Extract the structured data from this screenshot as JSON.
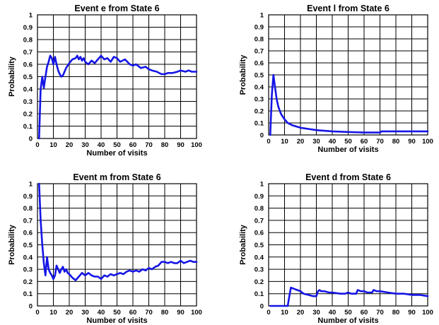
{
  "chart_data": [
    {
      "type": "line",
      "title": "Event e from State 6",
      "xlabel": "Number of visits",
      "ylabel": "Probability",
      "xlim": [
        0,
        100
      ],
      "ylim": [
        0,
        1
      ],
      "x_ticks": [
        "0",
        "10",
        "20",
        "30",
        "40",
        "50",
        "60",
        "70",
        "80",
        "90",
        "100"
      ],
      "y_ticks": [
        "0",
        "0.1",
        "0.2",
        "0.3",
        "0.4",
        "0.5",
        "0.6",
        "0.7",
        "0.8",
        "0.9",
        "1"
      ],
      "grid": true,
      "color": "#1515e6",
      "series": [
        {
          "x": [
            1,
            2,
            3,
            4,
            5,
            6,
            7,
            8,
            9,
            10,
            11,
            12,
            13,
            14,
            15,
            16,
            17,
            18,
            20,
            22,
            24,
            25,
            26,
            27,
            28,
            29,
            30,
            32,
            34,
            36,
            38,
            40,
            42,
            44,
            46,
            48,
            50,
            52,
            55,
            58,
            60,
            62,
            65,
            68,
            70,
            72,
            75,
            78,
            80,
            82,
            85,
            88,
            90,
            93,
            95,
            97,
            100
          ],
          "y": [
            0.0,
            0.4,
            0.5,
            0.41,
            0.5,
            0.58,
            0.62,
            0.67,
            0.65,
            0.6,
            0.66,
            0.6,
            0.55,
            0.52,
            0.5,
            0.51,
            0.54,
            0.57,
            0.61,
            0.64,
            0.65,
            0.67,
            0.64,
            0.66,
            0.63,
            0.65,
            0.62,
            0.6,
            0.63,
            0.61,
            0.64,
            0.67,
            0.64,
            0.65,
            0.62,
            0.66,
            0.65,
            0.62,
            0.64,
            0.6,
            0.59,
            0.6,
            0.57,
            0.58,
            0.56,
            0.55,
            0.54,
            0.52,
            0.52,
            0.53,
            0.53,
            0.54,
            0.55,
            0.54,
            0.55,
            0.54,
            0.54
          ]
        }
      ]
    },
    {
      "type": "line",
      "title": "Event l from State 6",
      "xlabel": "Number of visits",
      "ylabel": "Probability",
      "xlim": [
        0,
        100
      ],
      "ylim": [
        0,
        1
      ],
      "x_ticks": [
        "0",
        "10",
        "20",
        "30",
        "40",
        "50",
        "60",
        "70",
        "80",
        "90",
        "100"
      ],
      "y_ticks": [
        "0",
        "0.1",
        "0.2",
        "0.3",
        "0.4",
        "0.5",
        "0.6",
        "0.7",
        "0.8",
        "0.9",
        "1"
      ],
      "grid": true,
      "color": "#1515e6",
      "series": [
        {
          "x": [
            1,
            2,
            3,
            4,
            5,
            6,
            7,
            8,
            10,
            12,
            15,
            20,
            25,
            30,
            40,
            50,
            60,
            70,
            71,
            72,
            80,
            90,
            100
          ],
          "y": [
            0.0,
            0.33,
            0.5,
            0.4,
            0.3,
            0.24,
            0.2,
            0.17,
            0.13,
            0.1,
            0.08,
            0.06,
            0.05,
            0.04,
            0.03,
            0.025,
            0.02,
            0.02,
            0.03,
            0.03,
            0.03,
            0.03,
            0.03
          ]
        }
      ]
    },
    {
      "type": "line",
      "title": "Event m from State 6",
      "xlabel": "Number of visits",
      "ylabel": "Probability",
      "xlim": [
        0,
        100
      ],
      "ylim": [
        0,
        1
      ],
      "x_ticks": [
        "0",
        "10",
        "20",
        "30",
        "40",
        "50",
        "60",
        "70",
        "80",
        "90",
        "100"
      ],
      "y_ticks": [
        "0",
        "0.1",
        "0.2",
        "0.3",
        "0.4",
        "0.5",
        "0.6",
        "0.7",
        "0.8",
        "0.9",
        "1"
      ],
      "grid": true,
      "color": "#1515e6",
      "series": [
        {
          "x": [
            1,
            2,
            3,
            4,
            5,
            6,
            7,
            8,
            9,
            10,
            11,
            12,
            13,
            14,
            15,
            16,
            17,
            18,
            19,
            20,
            22,
            24,
            26,
            28,
            30,
            32,
            34,
            36,
            38,
            40,
            42,
            44,
            46,
            48,
            50,
            52,
            54,
            56,
            58,
            60,
            62,
            64,
            66,
            68,
            70,
            72,
            74,
            76,
            78,
            80,
            82,
            84,
            86,
            88,
            90,
            92,
            94,
            96,
            98,
            100
          ],
          "y": [
            1.0,
            0.7,
            0.5,
            0.35,
            0.25,
            0.4,
            0.3,
            0.27,
            0.25,
            0.22,
            0.25,
            0.33,
            0.3,
            0.27,
            0.3,
            0.32,
            0.28,
            0.3,
            0.27,
            0.26,
            0.23,
            0.21,
            0.24,
            0.27,
            0.25,
            0.27,
            0.25,
            0.24,
            0.24,
            0.22,
            0.25,
            0.24,
            0.26,
            0.25,
            0.26,
            0.27,
            0.26,
            0.28,
            0.29,
            0.28,
            0.29,
            0.28,
            0.3,
            0.29,
            0.31,
            0.3,
            0.32,
            0.33,
            0.36,
            0.36,
            0.35,
            0.36,
            0.35,
            0.35,
            0.37,
            0.35,
            0.36,
            0.37,
            0.36,
            0.36
          ]
        }
      ]
    },
    {
      "type": "line",
      "title": "Event d from State 6",
      "xlabel": "Number of visits",
      "ylabel": "Probability",
      "xlim": [
        0,
        100
      ],
      "ylim": [
        0,
        1
      ],
      "x_ticks": [
        "0",
        "10",
        "20",
        "30",
        "40",
        "50",
        "60",
        "70",
        "80",
        "90",
        "100"
      ],
      "y_ticks": [
        "0",
        "0.1",
        "0.2",
        "0.3",
        "0.4",
        "0.5",
        "0.6",
        "0.7",
        "0.8",
        "0.9",
        "1"
      ],
      "grid": true,
      "color": "#1515e6",
      "series": [
        {
          "x": [
            1,
            12,
            13,
            14,
            16,
            18,
            20,
            22,
            25,
            28,
            30,
            31,
            32,
            33,
            35,
            38,
            40,
            45,
            48,
            50,
            52,
            55,
            56,
            58,
            60,
            62,
            65,
            66,
            68,
            70,
            75,
            80,
            85,
            90,
            95,
            100
          ],
          "y": [
            0.0,
            0.0,
            0.08,
            0.15,
            0.14,
            0.13,
            0.12,
            0.1,
            0.09,
            0.08,
            0.08,
            0.12,
            0.13,
            0.12,
            0.12,
            0.11,
            0.11,
            0.1,
            0.1,
            0.11,
            0.1,
            0.1,
            0.13,
            0.12,
            0.12,
            0.11,
            0.11,
            0.13,
            0.12,
            0.12,
            0.11,
            0.1,
            0.1,
            0.09,
            0.09,
            0.08
          ]
        }
      ]
    }
  ]
}
